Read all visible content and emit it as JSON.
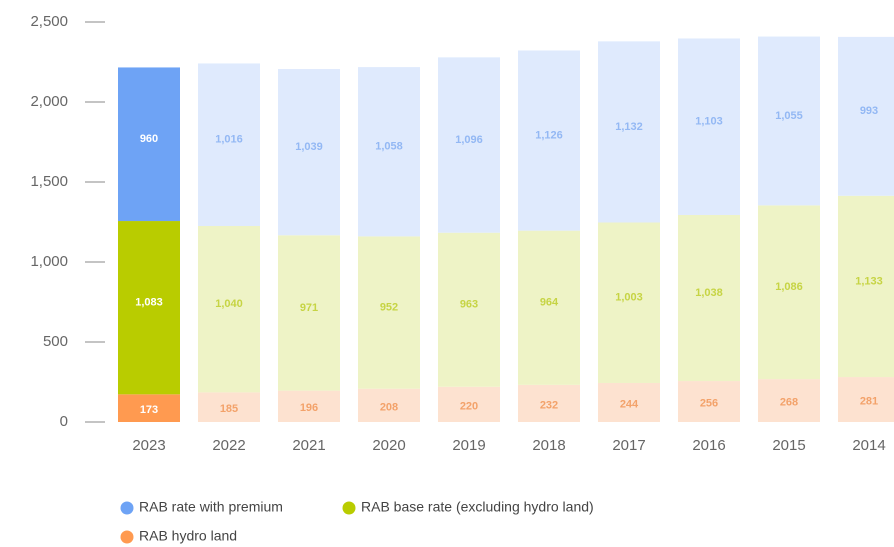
{
  "chart_data": {
    "type": "stacked_bar",
    "categories": [
      "2023",
      "2022",
      "2021",
      "2020",
      "2019",
      "2018",
      "2017",
      "2016",
      "2015",
      "2014"
    ],
    "category_colors": [
      "#2f6fd6",
      "#666666",
      "#666666",
      "#666666",
      "#666666",
      "#666666",
      "#666666",
      "#666666",
      "#666666",
      "#666666"
    ],
    "series": [
      {
        "name": "RAB hydro land",
        "color": "#ff9a50",
        "label_color": "#f3a26a",
        "colors": [
          "#ff9a50",
          "#fde2d0",
          "#fde2d0",
          "#fde2d0",
          "#fde2d0",
          "#fde2d0",
          "#fde2d0",
          "#fde2d0",
          "#fde2d0",
          "#fde2d0"
        ],
        "values": [
          173,
          185,
          196,
          208,
          220,
          232,
          244,
          256,
          268,
          281
        ]
      },
      {
        "name": "RAB base rate (excluding hydro land)",
        "color": "#b9cc00",
        "label_color": "#c6d444",
        "colors": [
          "#b9cc00",
          "#eef3c6",
          "#eef3c6",
          "#eef3c6",
          "#eef3c6",
          "#eef3c6",
          "#eef3c6",
          "#eef3c6",
          "#eef3c6",
          "#eef3c6"
        ],
        "values": [
          1083,
          1040,
          971,
          952,
          963,
          964,
          1003,
          1038,
          1086,
          1133
        ]
      },
      {
        "name": "RAB rate with premium",
        "color": "#6ea3f5",
        "label_color": "#93b8f4",
        "colors": [
          "#6ea3f5",
          "#dfeafd",
          "#dfeafd",
          "#dfeafd",
          "#dfeafd",
          "#dfeafd",
          "#dfeafd",
          "#dfeafd",
          "#dfeafd",
          "#dfeafd"
        ],
        "values": [
          960,
          1016,
          1039,
          1058,
          1096,
          1126,
          1132,
          1103,
          1055,
          993
        ],
        "value_labels": [
          "960",
          "1,016",
          "1,039",
          "1,058",
          "1,096",
          "1,126",
          "1,132",
          "1,103",
          "1,055",
          "993"
        ]
      }
    ],
    "base_value_labels": [
      "1,083",
      "1,040",
      "971",
      "952",
      "963",
      "964",
      "1,003",
      "1,038",
      "1,086",
      "1,133"
    ],
    "ylim": [
      0,
      2500
    ],
    "yticks": [
      0,
      500,
      {
        "value": 1000,
        "label": "1,000"
      },
      {
        "value": 1500,
        "label": "1,500"
      },
      {
        "value": 2000,
        "label": "2,000"
      },
      {
        "value": 2500,
        "label": "2,500"
      }
    ]
  }
}
